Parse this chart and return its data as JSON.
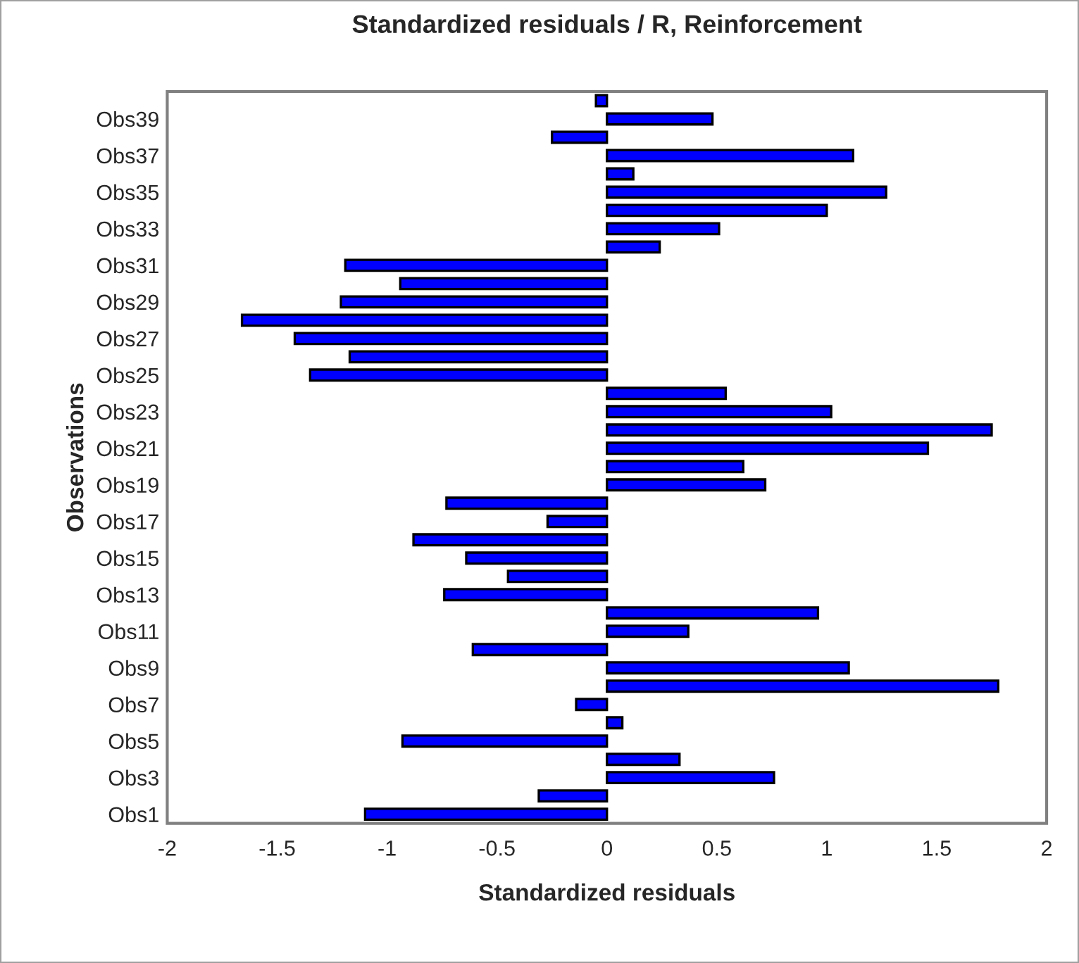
{
  "chart_data": {
    "type": "bar",
    "orientation": "horizontal",
    "title": "Standardized residuals / R, Reinforcement",
    "xlabel": "Standardized residuals",
    "ylabel": "Observations",
    "categories": [
      null,
      "Obs39",
      null,
      "Obs37",
      null,
      "Obs35",
      null,
      "Obs33",
      null,
      "Obs31",
      null,
      "Obs29",
      null,
      "Obs27",
      null,
      "Obs25",
      null,
      "Obs23",
      null,
      "Obs21",
      null,
      "Obs19",
      null,
      "Obs17",
      null,
      "Obs15",
      null,
      "Obs13",
      null,
      "Obs11",
      null,
      "Obs9",
      null,
      "Obs7",
      null,
      "Obs5",
      null,
      "Obs3",
      null,
      "Obs1"
    ],
    "values": [
      -0.05,
      0.48,
      -0.25,
      1.12,
      0.12,
      1.27,
      1.0,
      0.51,
      0.24,
      -1.19,
      -0.94,
      -1.21,
      -1.66,
      -1.42,
      -1.17,
      -1.35,
      0.54,
      1.02,
      1.75,
      1.46,
      0.62,
      0.72,
      -0.73,
      -0.27,
      -0.88,
      -0.64,
      -0.45,
      -0.74,
      0.96,
      0.37,
      -0.61,
      1.1,
      1.78,
      -0.14,
      0.07,
      -0.93,
      0.33,
      0.76,
      -0.31,
      -1.1
    ],
    "color": "#0000ff",
    "xlim": [
      -2,
      2
    ],
    "xticks": [
      -2,
      -1.5,
      -1,
      -0.5,
      0,
      0.5,
      1,
      1.5,
      2
    ],
    "grid": false,
    "legend": false
  }
}
